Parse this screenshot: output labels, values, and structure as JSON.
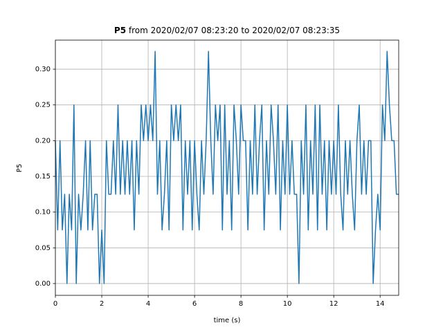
{
  "chart_data": {
    "type": "line",
    "title": {
      "bold": "P5",
      "rest": "from 2020/02/07 08:23:20 to 2020/02/07 08:23:35"
    },
    "x_label": "time (s)",
    "y_label": "P5",
    "xlim": [
      0,
      14.8
    ],
    "ylim": [
      -0.0165,
      0.3407
    ],
    "xticks": [
      0,
      2,
      4,
      6,
      8,
      10,
      12,
      14
    ],
    "yticks": [
      {
        "value": 0,
        "label": "0.00"
      },
      {
        "value": 0.05,
        "label": "0.05"
      },
      {
        "value": 0.1,
        "label": "0.10"
      },
      {
        "value": 0.15,
        "label": "0.15"
      },
      {
        "value": 0.2,
        "label": "0.20"
      },
      {
        "value": 0.25,
        "label": "0.25"
      },
      {
        "value": 0.3,
        "label": "0.30"
      }
    ],
    "grid": true,
    "series": [
      {
        "name": "P5",
        "color": "#1f77b4",
        "x": [
          0,
          0.1,
          0.2,
          0.3,
          0.4,
          0.5,
          0.6,
          0.7,
          0.8,
          0.9,
          1,
          1.1,
          1.2,
          1.3,
          1.4,
          1.5,
          1.6,
          1.7,
          1.8,
          1.9,
          2,
          2.1,
          2.2,
          2.3,
          2.4,
          2.5,
          2.6,
          2.7,
          2.8,
          2.9,
          3,
          3.1,
          3.2,
          3.3,
          3.4,
          3.5,
          3.6,
          3.7,
          3.8,
          3.9,
          4,
          4.1,
          4.2,
          4.3,
          4.4,
          4.5,
          4.6,
          4.7,
          4.8,
          4.9,
          5,
          5.1,
          5.2,
          5.3,
          5.4,
          5.5,
          5.6,
          5.7,
          5.8,
          5.9,
          6,
          6.1,
          6.2,
          6.3,
          6.4,
          6.5,
          6.6,
          6.7,
          6.8,
          6.9,
          7,
          7.1,
          7.2,
          7.3,
          7.4,
          7.5,
          7.6,
          7.7,
          7.8,
          7.9,
          8,
          8.1,
          8.2,
          8.3,
          8.4,
          8.5,
          8.6,
          8.7,
          8.8,
          8.9,
          9,
          9.1,
          9.2,
          9.3,
          9.4,
          9.5,
          9.6,
          9.7,
          9.8,
          9.9,
          10,
          10.1,
          10.2,
          10.3,
          10.4,
          10.5,
          10.6,
          10.7,
          10.8,
          10.9,
          11,
          11.1,
          11.2,
          11.3,
          11.4,
          11.5,
          11.6,
          11.7,
          11.8,
          11.9,
          12,
          12.1,
          12.2,
          12.3,
          12.4,
          12.5,
          12.6,
          12.7,
          12.8,
          12.9,
          13,
          13.1,
          13.2,
          13.3,
          13.4,
          13.5,
          13.6,
          13.7,
          13.8,
          13.9,
          14,
          14.1,
          14.2,
          14.3,
          14.4,
          14.5,
          14.6,
          14.7,
          14.8
        ],
        "values": [
          0.2,
          0.075,
          0.2,
          0.075,
          0.125,
          0,
          0.125,
          0.075,
          0.25,
          0,
          0.125,
          0.075,
          0.125,
          0.2,
          0.075,
          0.2,
          0.075,
          0.125,
          0.125,
          0,
          0.075,
          0,
          0.2,
          0.125,
          0.125,
          0.2,
          0.125,
          0.25,
          0.125,
          0.2,
          0.125,
          0.2,
          0.125,
          0.2,
          0.075,
          0.2,
          0.125,
          0.25,
          0.2,
          0.25,
          0.2,
          0.25,
          0.2,
          0.325,
          0.125,
          0.2,
          0.075,
          0.125,
          0.2,
          0.075,
          0.25,
          0.2,
          0.25,
          0.2,
          0.25,
          0.075,
          0.2,
          0.125,
          0.2,
          0.075,
          0.2,
          0.125,
          0.075,
          0.2,
          0.125,
          0.2,
          0.325,
          0.2,
          0.125,
          0.25,
          0.2,
          0.25,
          0.075,
          0.25,
          0.125,
          0.2,
          0.075,
          0.25,
          0.2,
          0.125,
          0.25,
          0.2,
          0.2,
          0.075,
          0.2,
          0.125,
          0.25,
          0.125,
          0.2,
          0.25,
          0.075,
          0.2,
          0.125,
          0.25,
          0.2,
          0.125,
          0.25,
          0.075,
          0.2,
          0.125,
          0.25,
          0.125,
          0.2,
          0.125,
          0.125,
          0,
          0.2,
          0.125,
          0.25,
          0.075,
          0.2,
          0.125,
          0.25,
          0.075,
          0.25,
          0.125,
          0.2,
          0.075,
          0.2,
          0.125,
          0.2,
          0.125,
          0.25,
          0.125,
          0.075,
          0.2,
          0.125,
          0.2,
          0.125,
          0.075,
          0.2,
          0.25,
          0.125,
          0.2,
          0.125,
          0.2,
          0.2,
          0,
          0.075,
          0.125,
          0.075,
          0.25,
          0.2,
          0.325,
          0.25,
          0.2,
          0.2,
          0.125,
          0.125
        ]
      }
    ]
  }
}
